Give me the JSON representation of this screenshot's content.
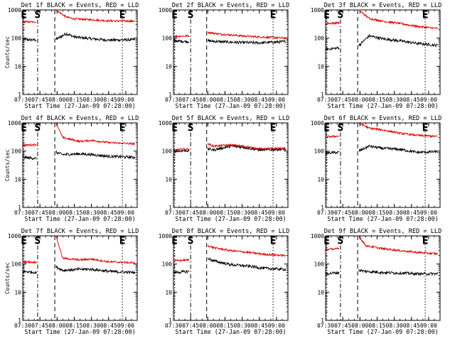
{
  "figure": {
    "background": "#ffffff",
    "ink": "#000000"
  },
  "colors": {
    "events": "#000000",
    "lld": "#e00000"
  },
  "chart_data": [
    {
      "type": "line",
      "title": "Det 1f BLACK = Events, RED = LLD",
      "xlabel": "Start Time (27-Jan-09 07:28:00)",
      "ylabel": "Counts/sec",
      "yscale": "log",
      "ylim": [
        1,
        1000
      ],
      "ytick_labels": [
        "1",
        "10",
        "100",
        "1000"
      ],
      "xlim": [
        "07:30",
        "09:10"
      ],
      "xtick_labels": [
        "07:30",
        "07:45",
        "08:00",
        "08:15",
        "08:30",
        "08:45",
        "09:00"
      ],
      "markers": [
        {
          "label": "E",
          "time": "07:31",
          "style": "dotted"
        },
        {
          "label": "S",
          "time": "07:43",
          "style": "dash-dot"
        },
        {
          "label": "",
          "time": "07:58",
          "style": "dashed"
        },
        {
          "label": "E",
          "time": "08:57",
          "style": "dotted"
        }
      ],
      "series": [
        {
          "name": "Events",
          "color": "black",
          "pre_time": [
            "07:30",
            "07:42"
          ],
          "pre": [
            90,
            85
          ],
          "post_time": [
            "07:59",
            "08:08",
            "08:15",
            "08:30",
            "08:45",
            "09:08"
          ],
          "post": [
            90,
            145,
            110,
            95,
            85,
            88
          ]
        },
        {
          "name": "LLD",
          "color": "red",
          "pre_time": [
            "07:30",
            "07:42"
          ],
          "pre": [
            380,
            370
          ],
          "post_time": [
            "07:59",
            "08:08",
            "08:15",
            "08:30",
            "08:45",
            "09:08"
          ],
          "post": [
            1000,
            560,
            480,
            450,
            410,
            400
          ]
        }
      ]
    },
    {
      "type": "line",
      "title": "Det 2f BLACK = Events, RED = LLD",
      "xlabel": "Start Time (27-Jan-09 07:28:00)",
      "ylabel": "",
      "yscale": "log",
      "ylim": [
        1,
        1000
      ],
      "ytick_labels": [
        "1",
        "10",
        "100",
        "1000"
      ],
      "xlim": [
        "07:30",
        "09:10"
      ],
      "xtick_labels": [
        "07:30",
        "07:45",
        "08:00",
        "08:15",
        "08:30",
        "08:45",
        "09:00"
      ],
      "markers": [
        {
          "label": "E",
          "time": "07:31",
          "style": "dotted"
        },
        {
          "label": "S",
          "time": "07:45",
          "style": "dash-dot"
        },
        {
          "label": "",
          "time": "07:59",
          "style": "dashed"
        },
        {
          "label": "E",
          "time": "08:57",
          "style": "dotted"
        }
      ],
      "series": [
        {
          "name": "Events",
          "color": "black",
          "pre_time": [
            "07:30",
            "07:44"
          ],
          "pre": [
            80,
            75
          ],
          "post_time": [
            "08:00",
            "08:10",
            "08:20",
            "08:30",
            "08:45",
            "09:08"
          ],
          "post": [
            80,
            75,
            72,
            70,
            68,
            75
          ]
        },
        {
          "name": "LLD",
          "color": "red",
          "pre_time": [
            "07:30",
            "07:44"
          ],
          "pre": [
            115,
            120
          ],
          "post_time": [
            "08:00",
            "08:10",
            "08:20",
            "08:30",
            "08:45",
            "09:08"
          ],
          "post": [
            160,
            140,
            130,
            120,
            110,
            100
          ]
        }
      ]
    },
    {
      "type": "line",
      "title": "Det 3f BLACK = Events, RED = LLD",
      "xlabel": "Start Time (27-Jan-09 07:28:00)",
      "ylabel": "",
      "yscale": "log",
      "ylim": [
        1,
        1000
      ],
      "ytick_labels": [
        "1",
        "10",
        "100",
        "1000"
      ],
      "xlim": [
        "07:30",
        "09:10"
      ],
      "xtick_labels": [
        "07:30",
        "07:45",
        "08:00",
        "08:15",
        "08:30",
        "08:45",
        "09:00"
      ],
      "markers": [
        {
          "label": "E",
          "time": "07:31",
          "style": "dotted"
        },
        {
          "label": "S",
          "time": "07:43",
          "style": "dash-dot"
        },
        {
          "label": "",
          "time": "07:58",
          "style": "dashed"
        },
        {
          "label": "E",
          "time": "08:57",
          "style": "dotted"
        }
      ],
      "series": [
        {
          "name": "Events",
          "color": "black",
          "pre_time": [
            "07:30",
            "07:42"
          ],
          "pre": [
            40,
            45
          ],
          "post_time": [
            "07:59",
            "08:08",
            "08:20",
            "08:35",
            "08:50",
            "09:08"
          ],
          "post": [
            55,
            120,
            95,
            80,
            65,
            55
          ]
        },
        {
          "name": "LLD",
          "color": "red",
          "pre_time": [
            "07:30",
            "07:42"
          ],
          "pre": [
            330,
            350
          ],
          "post_time": [
            "07:59",
            "08:08",
            "08:20",
            "08:35",
            "08:50",
            "09:08"
          ],
          "post": [
            1000,
            500,
            400,
            330,
            260,
            220
          ]
        }
      ]
    },
    {
      "type": "line",
      "title": "Det 4f BLACK = Events, RED = LLD",
      "xlabel": "Start Time (27-Jan-09 07:28:00)",
      "ylabel": "Counts/sec",
      "yscale": "log",
      "ylim": [
        1,
        1000
      ],
      "ytick_labels": [
        "1",
        "10",
        "100",
        "1000"
      ],
      "xlim": [
        "07:30",
        "09:10"
      ],
      "xtick_labels": [
        "07:30",
        "07:45",
        "08:00",
        "08:15",
        "08:30",
        "08:45",
        "09:00"
      ],
      "markers": [
        {
          "label": "E",
          "time": "07:31",
          "style": "dotted"
        },
        {
          "label": "S",
          "time": "07:43",
          "style": "dash-dot"
        },
        {
          "label": "",
          "time": "07:58",
          "style": "dashed"
        },
        {
          "label": "E",
          "time": "08:57",
          "style": "dotted"
        }
      ],
      "series": [
        {
          "name": "Events",
          "color": "black",
          "pre_time": [
            "07:30",
            "07:42"
          ],
          "pre": [
            60,
            55
          ],
          "post_time": [
            "07:59",
            "08:05",
            "08:20",
            "08:30",
            "08:45",
            "09:08"
          ],
          "post": [
            90,
            75,
            80,
            75,
            65,
            60
          ]
        },
        {
          "name": "LLD",
          "color": "red",
          "pre_time": [
            "07:30",
            "07:42"
          ],
          "pre": [
            160,
            170
          ],
          "post_time": [
            "07:59",
            "08:05",
            "08:20",
            "08:30",
            "08:45",
            "09:08"
          ],
          "post": [
            1000,
            300,
            220,
            240,
            200,
            180
          ]
        }
      ]
    },
    {
      "type": "line",
      "title": "Det 5f BLACK = Events, RED = LLD",
      "xlabel": "Start Time (27-Jan-09 07:28:00)",
      "ylabel": "",
      "yscale": "log",
      "ylim": [
        1,
        1000
      ],
      "ytick_labels": [
        "1",
        "10",
        "100",
        "1000"
      ],
      "xlim": [
        "07:30",
        "09:10"
      ],
      "xtick_labels": [
        "07:30",
        "07:45",
        "08:00",
        "08:15",
        "08:30",
        "08:45",
        "09:00"
      ],
      "markers": [
        {
          "label": "E",
          "time": "07:31",
          "style": "dotted"
        },
        {
          "label": "S",
          "time": "07:45",
          "style": "dash-dot"
        },
        {
          "label": "",
          "time": "07:59",
          "style": "dashed"
        },
        {
          "label": "E",
          "time": "08:57",
          "style": "dotted"
        }
      ],
      "series": [
        {
          "name": "Events",
          "color": "black",
          "pre_time": [
            "07:30",
            "07:44"
          ],
          "pre": [
            100,
            105
          ],
          "post_time": [
            "08:00",
            "08:05",
            "08:20",
            "08:30",
            "08:45",
            "09:08"
          ],
          "post": [
            120,
            110,
            150,
            140,
            110,
            115
          ]
        },
        {
          "name": "LLD",
          "color": "red",
          "pre_time": [
            "07:30",
            "07:44"
          ],
          "pre": [
            110,
            120
          ],
          "post_time": [
            "08:00",
            "08:05",
            "08:20",
            "08:30",
            "08:45",
            "09:08"
          ],
          "post": [
            180,
            150,
            165,
            150,
            120,
            125
          ]
        }
      ]
    },
    {
      "type": "line",
      "title": "Det 6f BLACK = Events, RED = LLD",
      "xlabel": "Start Time (27-Jan-09 07:28:00)",
      "ylabel": "",
      "yscale": "log",
      "ylim": [
        1,
        1000
      ],
      "ytick_labels": [
        "1",
        "10",
        "100",
        "1000"
      ],
      "xlim": [
        "07:30",
        "09:10"
      ],
      "xtick_labels": [
        "07:30",
        "07:45",
        "08:00",
        "08:15",
        "08:30",
        "08:45",
        "09:00"
      ],
      "markers": [
        {
          "label": "E",
          "time": "07:31",
          "style": "dotted"
        },
        {
          "label": "S",
          "time": "07:43",
          "style": "dash-dot"
        },
        {
          "label": "",
          "time": "07:58",
          "style": "dashed"
        },
        {
          "label": "E",
          "time": "08:57",
          "style": "dotted"
        }
      ],
      "series": [
        {
          "name": "Events",
          "color": "black",
          "pre_time": [
            "07:30",
            "07:42"
          ],
          "pre": [
            85,
            90
          ],
          "post_time": [
            "07:59",
            "08:08",
            "08:20",
            "08:35",
            "08:50",
            "09:08"
          ],
          "post": [
            100,
            150,
            125,
            115,
            90,
            95
          ]
        },
        {
          "name": "LLD",
          "color": "red",
          "pre_time": [
            "07:30",
            "07:42"
          ],
          "pre": [
            320,
            340
          ],
          "post_time": [
            "07:59",
            "08:08",
            "08:20",
            "08:35",
            "08:50",
            "09:08"
          ],
          "post": [
            1000,
            650,
            560,
            430,
            360,
            330
          ]
        }
      ]
    },
    {
      "type": "line",
      "title": "Det 7f BLACK = Events, RED = LLD",
      "xlabel": "Start Time (27-Jan-09 07:28:00)",
      "ylabel": "Counts/sec",
      "yscale": "log",
      "ylim": [
        1,
        1000
      ],
      "ytick_labels": [
        "1",
        "10",
        "100",
        "1000"
      ],
      "xlim": [
        "07:30",
        "09:10"
      ],
      "xtick_labels": [
        "07:30",
        "07:45",
        "08:00",
        "08:15",
        "08:30",
        "08:45",
        "09:00"
      ],
      "markers": [
        {
          "label": "E",
          "time": "07:31",
          "style": "dotted"
        },
        {
          "label": "S",
          "time": "07:43",
          "style": "dash-dot"
        },
        {
          "label": "",
          "time": "07:58",
          "style": "dashed"
        },
        {
          "label": "E",
          "time": "08:57",
          "style": "dotted"
        }
      ],
      "series": [
        {
          "name": "Events",
          "color": "black",
          "pre_time": [
            "07:30",
            "07:42"
          ],
          "pre": [
            55,
            50
          ],
          "post_time": [
            "07:59",
            "08:05",
            "08:20",
            "08:30",
            "08:45",
            "09:08"
          ],
          "post": [
            80,
            60,
            65,
            65,
            55,
            50
          ]
        },
        {
          "name": "LLD",
          "color": "red",
          "pre_time": [
            "07:30",
            "07:42"
          ],
          "pre": [
            120,
            115
          ],
          "post_time": [
            "07:59",
            "08:05",
            "08:20",
            "08:30",
            "08:45",
            "09:08"
          ],
          "post": [
            1000,
            160,
            140,
            150,
            120,
            110
          ]
        }
      ]
    },
    {
      "type": "line",
      "title": "Det 8f BLACK = Events, RED = LLD",
      "xlabel": "Start Time (27-Jan-09 07:28:00)",
      "ylabel": "",
      "yscale": "log",
      "ylim": [
        1,
        1000
      ],
      "ytick_labels": [
        "1",
        "10",
        "100",
        "1000"
      ],
      "xlim": [
        "07:30",
        "09:10"
      ],
      "xtick_labels": [
        "07:30",
        "07:45",
        "08:00",
        "08:15",
        "08:30",
        "08:45",
        "09:00"
      ],
      "markers": [
        {
          "label": "E",
          "time": "07:31",
          "style": "dotted"
        },
        {
          "label": "S",
          "time": "07:45",
          "style": "dash-dot"
        },
        {
          "label": "",
          "time": "07:59",
          "style": "dashed"
        },
        {
          "label": "E",
          "time": "08:57",
          "style": "dotted"
        }
      ],
      "series": [
        {
          "name": "Events",
          "color": "black",
          "pre_time": [
            "07:30",
            "07:44"
          ],
          "pre": [
            50,
            55
          ],
          "post_time": [
            "08:00",
            "08:05",
            "08:20",
            "08:35",
            "08:50",
            "09:08"
          ],
          "post": [
            160,
            130,
            95,
            85,
            70,
            65
          ]
        },
        {
          "name": "LLD",
          "color": "red",
          "pre_time": [
            "07:30",
            "07:44"
          ],
          "pre": [
            130,
            140
          ],
          "post_time": [
            "08:00",
            "08:05",
            "08:20",
            "08:35",
            "08:50",
            "09:08"
          ],
          "post": [
            450,
            380,
            300,
            260,
            220,
            200
          ]
        }
      ]
    },
    {
      "type": "line",
      "title": "Det 9f BLACK = Events, RED = LLD",
      "xlabel": "Start Time (27-Jan-09 07:28:00)",
      "ylabel": "",
      "yscale": "log",
      "ylim": [
        1,
        1000
      ],
      "ytick_labels": [
        "1",
        "10",
        "100",
        "1000"
      ],
      "xlim": [
        "07:30",
        "09:10"
      ],
      "xtick_labels": [
        "07:30",
        "07:45",
        "08:00",
        "08:15",
        "08:30",
        "08:45",
        "09:00"
      ],
      "markers": [
        {
          "label": "E",
          "time": "07:31",
          "style": "dotted"
        },
        {
          "label": "S",
          "time": "07:43",
          "style": "dash-dot"
        },
        {
          "label": "",
          "time": "07:58",
          "style": "dashed"
        },
        {
          "label": "E",
          "time": "08:57",
          "style": "dotted"
        }
      ],
      "series": [
        {
          "name": "Events",
          "color": "black",
          "pre_time": [
            "07:30",
            "07:42"
          ],
          "pre": [
            45,
            50
          ],
          "post_time": [
            "07:59",
            "08:05",
            "08:20",
            "08:35",
            "08:50",
            "09:08"
          ],
          "post": [
            60,
            55,
            50,
            48,
            45,
            45
          ]
        },
        {
          "name": "LLD",
          "color": "red",
          "pre_time": [
            "07:30",
            "07:42"
          ],
          "pre": [
            330,
            350
          ],
          "post_time": [
            "07:59",
            "08:05",
            "08:20",
            "08:35",
            "08:50",
            "09:08"
          ],
          "post": [
            1000,
            450,
            350,
            300,
            260,
            230
          ]
        }
      ]
    }
  ]
}
